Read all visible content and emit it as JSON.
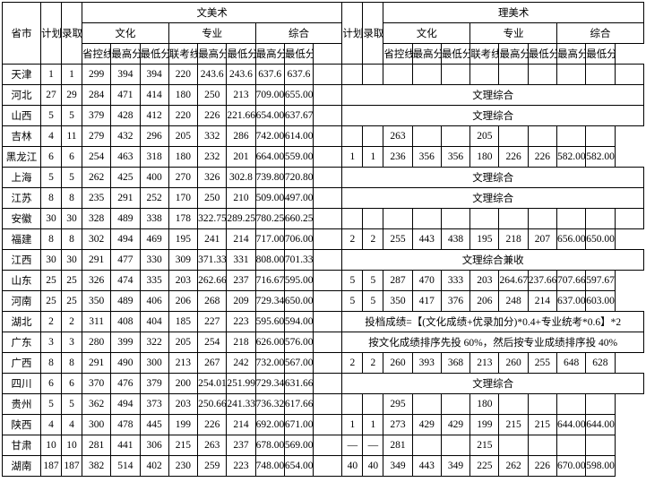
{
  "table": {
    "type": "table",
    "background_color": "#ffffff",
    "border_color": "#000000",
    "font_family": "SimSun",
    "font_size_pt": 9,
    "headers": {
      "province": "省市",
      "plan": "计划",
      "admit": "录取",
      "wen_art": "文美术",
      "li_art": "理美术",
      "culture": "文化",
      "major": "专业",
      "composite": "综合",
      "prov_line": "省控线",
      "max": "最高分",
      "min": "最低分",
      "exam_line": "联考线"
    },
    "note_rows": {
      "wenli_composite": "文理综合",
      "wenli_composite_jianshou": "文理综合兼收",
      "hubei_note": "投档成绩=【(文化成绩+优录加分)*0.4+专业统考*0.6】*2",
      "guangdong_note": "按文化成绩排序先投 60%，然后按专业成绩排序投 40%"
    },
    "rows": [
      {
        "prov": "天津",
        "w": {
          "p": "1",
          "a": "1",
          "cl": "299",
          "cmax": "394",
          "cmin": "394",
          "el": "220",
          "mmax": "243.6",
          "mmin": "243.6",
          "zmax": "637.6",
          "zmin": "637.6"
        },
        "l": null,
        "note": ""
      },
      {
        "prov": "河北",
        "w": {
          "p": "27",
          "a": "29",
          "cl": "284",
          "cmax": "471",
          "cmin": "414",
          "el": "180",
          "mmax": "250",
          "mmin": "213",
          "zmax": "709.00",
          "zmin": "655.00"
        },
        "l": null,
        "note": "wenli_composite"
      },
      {
        "prov": "山西",
        "w": {
          "p": "5",
          "a": "5",
          "cl": "379",
          "cmax": "428",
          "cmin": "412",
          "el": "220",
          "mmax": "226",
          "mmin": "221.66",
          "zmax": "654.00",
          "zmin": "637.67"
        },
        "l": null,
        "note": "wenli_composite"
      },
      {
        "prov": "吉林",
        "w": {
          "p": "4",
          "a": "11",
          "cl": "279",
          "cmax": "432",
          "cmin": "296",
          "el": "205",
          "mmax": "332",
          "mmin": "286",
          "zmax": "742.00",
          "zmin": "614.00"
        },
        "l": {
          "p": "",
          "a": "",
          "cl": "263",
          "cmax": "",
          "cmin": "",
          "el": "205",
          "mmax": "",
          "mmin": "",
          "zmax": "",
          "zmin": ""
        },
        "note": ""
      },
      {
        "prov": "黑龙江",
        "w": {
          "p": "6",
          "a": "6",
          "cl": "254",
          "cmax": "463",
          "cmin": "318",
          "el": "180",
          "mmax": "232",
          "mmin": "201",
          "zmax": "664.00",
          "zmin": "559.00"
        },
        "l": {
          "p": "1",
          "a": "1",
          "cl": "236",
          "cmax": "356",
          "cmin": "356",
          "el": "180",
          "mmax": "226",
          "mmin": "226",
          "zmax": "582.00",
          "zmin": "582.00"
        },
        "note": ""
      },
      {
        "prov": "上海",
        "w": {
          "p": "5",
          "a": "5",
          "cl": "262",
          "cmax": "425",
          "cmin": "400",
          "el": "270",
          "mmax": "326",
          "mmin": "302.8",
          "zmax": "739.80",
          "zmin": "720.80"
        },
        "l": null,
        "note": "wenli_composite"
      },
      {
        "prov": "江苏",
        "w": {
          "p": "8",
          "a": "8",
          "cl": "235",
          "cmax": "291",
          "cmin": "252",
          "el": "170",
          "mmax": "250",
          "mmin": "210",
          "zmax": "509.00",
          "zmin": "497.00"
        },
        "l": null,
        "note": "wenli_composite"
      },
      {
        "prov": "安徽",
        "w": {
          "p": "30",
          "a": "30",
          "cl": "328",
          "cmax": "489",
          "cmin": "338",
          "el": "178",
          "mmax": "322.75",
          "mmin": "289.25",
          "zmax": "780.25",
          "zmin": "660.25"
        },
        "l": null,
        "note": ""
      },
      {
        "prov": "福建",
        "w": {
          "p": "8",
          "a": "8",
          "cl": "302",
          "cmax": "494",
          "cmin": "469",
          "el": "195",
          "mmax": "241",
          "mmin": "214",
          "zmax": "717.00",
          "zmin": "706.00"
        },
        "l": {
          "p": "2",
          "a": "2",
          "cl": "255",
          "cmax": "443",
          "cmin": "438",
          "el": "195",
          "mmax": "218",
          "mmin": "207",
          "zmax": "656.00",
          "zmin": "650.00"
        },
        "note": ""
      },
      {
        "prov": "江西",
        "w": {
          "p": "30",
          "a": "30",
          "cl": "291",
          "cmax": "477",
          "cmin": "330",
          "el": "309",
          "mmax": "371.33",
          "mmin": "331",
          "zmax": "808.00",
          "zmin": "701.33"
        },
        "l": null,
        "note": "wenli_composite_jianshou"
      },
      {
        "prov": "山东",
        "w": {
          "p": "25",
          "a": "25",
          "cl": "326",
          "cmax": "474",
          "cmin": "335",
          "el": "203",
          "mmax": "262.66",
          "mmin": "237",
          "zmax": "716.67",
          "zmin": "595.00"
        },
        "l": {
          "p": "5",
          "a": "5",
          "cl": "287",
          "cmax": "470",
          "cmin": "333",
          "el": "203",
          "mmax": "264.67",
          "mmin": "237.66",
          "zmax": "707.66",
          "zmin": "597.67"
        },
        "note": ""
      },
      {
        "prov": "河南",
        "w": {
          "p": "25",
          "a": "25",
          "cl": "350",
          "cmax": "489",
          "cmin": "406",
          "el": "206",
          "mmax": "268",
          "mmin": "209",
          "zmax": "729.34",
          "zmin": "650.00"
        },
        "l": {
          "p": "5",
          "a": "5",
          "cl": "350",
          "cmax": "417",
          "cmin": "376",
          "el": "206",
          "mmax": "248",
          "mmin": "214",
          "zmax": "637.00",
          "zmin": "603.00"
        },
        "note": ""
      },
      {
        "prov": "湖北",
        "w": {
          "p": "2",
          "a": "2",
          "cl": "311",
          "cmax": "408",
          "cmin": "404",
          "el": "185",
          "mmax": "227",
          "mmin": "223",
          "zmax": "595.60",
          "zmin": "594.00"
        },
        "l": null,
        "note": "hubei_note"
      },
      {
        "prov": "广东",
        "w": {
          "p": "3",
          "a": "3",
          "cl": "280",
          "cmax": "399",
          "cmin": "322",
          "el": "205",
          "mmax": "254",
          "mmin": "218",
          "zmax": "626.00",
          "zmin": "576.00"
        },
        "l": null,
        "note": "guangdong_note"
      },
      {
        "prov": "广西",
        "w": {
          "p": "8",
          "a": "8",
          "cl": "291",
          "cmax": "490",
          "cmin": "300",
          "el": "213",
          "mmax": "267",
          "mmin": "242",
          "zmax": "732.00",
          "zmin": "567.00"
        },
        "l": {
          "p": "2",
          "a": "2",
          "cl": "260",
          "cmax": "393",
          "cmin": "368",
          "el": "213",
          "mmax": "260",
          "mmin": "255",
          "zmax": "648",
          "zmin": "628"
        },
        "note": ""
      },
      {
        "prov": "四川",
        "w": {
          "p": "6",
          "a": "6",
          "cl": "370",
          "cmax": "476",
          "cmin": "379",
          "el": "200",
          "mmax": "254.01",
          "mmin": "251.99",
          "zmax": "729.34",
          "zmin": "631.66"
        },
        "l": null,
        "note": "wenli_composite"
      },
      {
        "prov": "贵州",
        "w": {
          "p": "5",
          "a": "5",
          "cl": "362",
          "cmax": "494",
          "cmin": "373",
          "el": "203",
          "mmax": "250.66",
          "mmin": "241.33",
          "zmax": "736.32",
          "zmin": "617.66"
        },
        "l": {
          "p": "",
          "a": "",
          "cl": "295",
          "cmax": "",
          "cmin": "",
          "el": "180",
          "mmax": "",
          "mmin": "",
          "zmax": "",
          "zmin": ""
        },
        "note": ""
      },
      {
        "prov": "陕西",
        "w": {
          "p": "4",
          "a": "4",
          "cl": "300",
          "cmax": "478",
          "cmin": "445",
          "el": "199",
          "mmax": "226",
          "mmin": "214",
          "zmax": "692.00",
          "zmin": "671.00"
        },
        "l": {
          "p": "1",
          "a": "1",
          "cl": "273",
          "cmax": "429",
          "cmin": "429",
          "el": "199",
          "mmax": "215",
          "mmin": "215",
          "zmax": "644.00",
          "zmin": "644.00"
        },
        "note": ""
      },
      {
        "prov": "甘肃",
        "w": {
          "p": "10",
          "a": "10",
          "cl": "281",
          "cmax": "441",
          "cmin": "306",
          "el": "215",
          "mmax": "263",
          "mmin": "237",
          "zmax": "678.00",
          "zmin": "569.00"
        },
        "l": {
          "p": "—",
          "a": "—",
          "cl": "281",
          "cmax": "",
          "cmin": "",
          "el": "215",
          "mmax": "",
          "mmin": "",
          "zmax": "",
          "zmin": ""
        },
        "note": ""
      },
      {
        "prov": "湖南",
        "w": {
          "p": "187",
          "a": "187",
          "cl": "382",
          "cmax": "514",
          "cmin": "402",
          "el": "230",
          "mmax": "259",
          "mmin": "223",
          "zmax": "748.00",
          "zmin": "654.00"
        },
        "l": {
          "p": "40",
          "a": "40",
          "cl": "349",
          "cmax": "443",
          "cmin": "349",
          "el": "225",
          "mmax": "262",
          "mmin": "226",
          "zmax": "670.00",
          "zmin": "598.00"
        },
        "note": ""
      }
    ]
  }
}
